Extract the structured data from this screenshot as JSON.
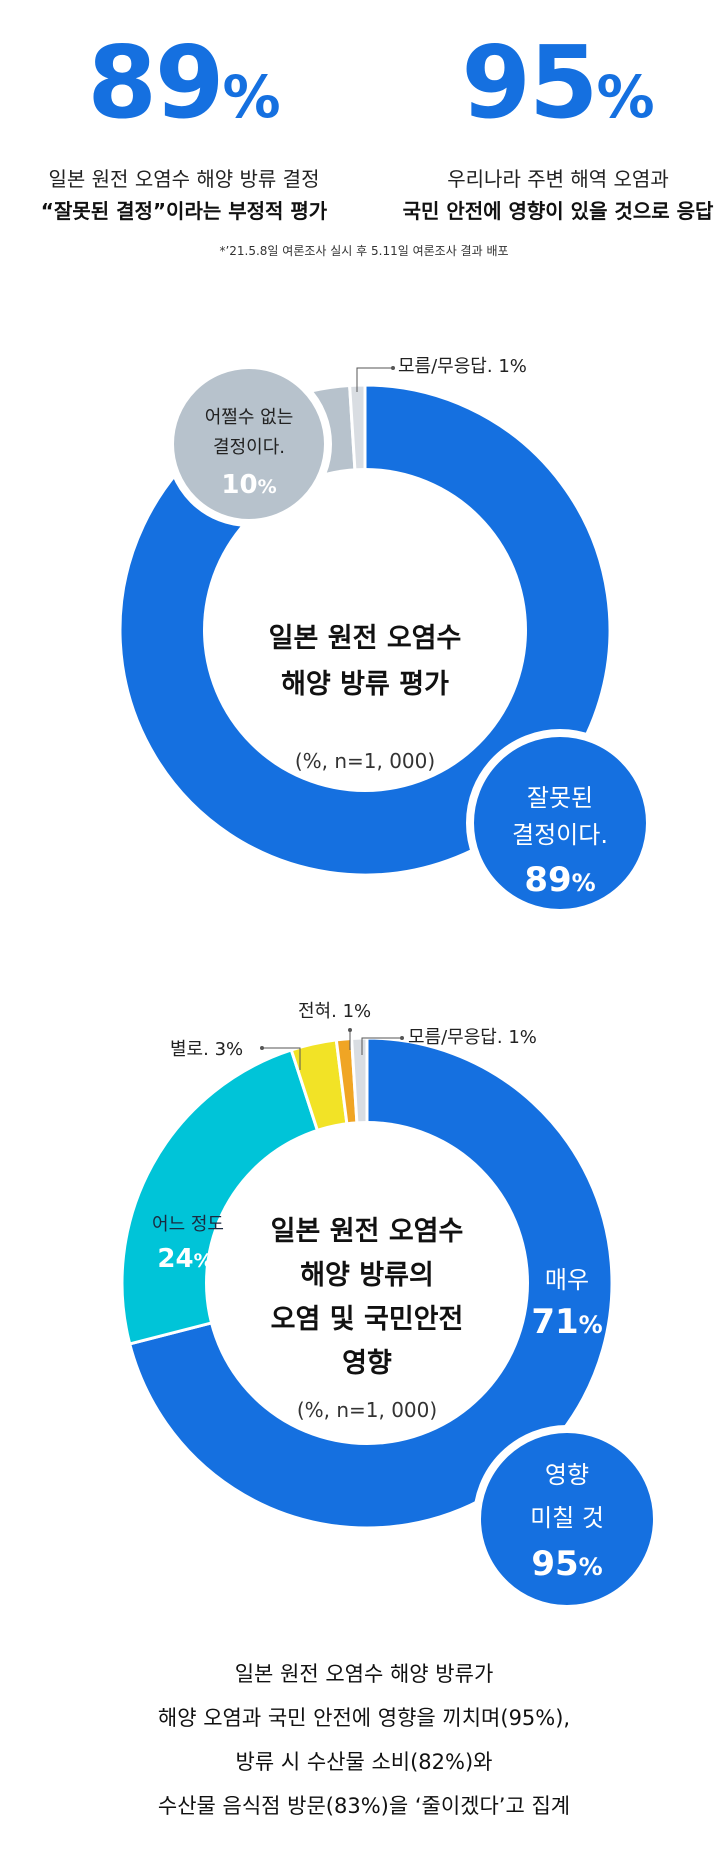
{
  "stats": [
    {
      "value": "89",
      "unit": "%",
      "line1": "일본 원전 오염수 해양 방류 결정",
      "line2": "“잘못된 결정”이라는 부정적 평가"
    },
    {
      "value": "95",
      "unit": "%",
      "line1": "우리나라 주변 해역 오염과",
      "line2": "국민 안전에 영향이 있을 것으로 응답"
    }
  ],
  "note": "*’21.5.8일 여론조사 실시 후 5.11일 여론조사 결과 배포",
  "chart_data": [
    {
      "type": "pie",
      "title_lines": [
        "일본 원전 오염수",
        "해양 방류 평가"
      ],
      "subtitle": "(%, n=1, 000)",
      "slices": [
        {
          "label": "잘못된 결정이다.",
          "value": 89,
          "color": "#1570e0",
          "label_lines": [
            "잘못된",
            "결정이다."
          ],
          "value_text": "89"
        },
        {
          "label": "어쩔수 없는 결정이다.",
          "value": 10,
          "color": "#b7c2cc",
          "label_lines": [
            "어쩔수 없는",
            "결정이다."
          ],
          "value_text": "10"
        },
        {
          "label": "모름/무응답.",
          "value": 1,
          "color": "#d9dde2",
          "value_text": "1%"
        }
      ]
    },
    {
      "type": "pie",
      "title_lines": [
        "일본 원전 오염수",
        "해양 방류의",
        "오염 및 국민안전",
        "영향"
      ],
      "subtitle": "(%, n=1, 000)",
      "slices": [
        {
          "label": "매우",
          "value": 71,
          "color": "#1570e0",
          "value_text": "71"
        },
        {
          "label": "어느 정도",
          "value": 24,
          "color": "#00c4d8",
          "value_text": "24"
        },
        {
          "label": "별로.",
          "value": 3,
          "color": "#f2e326",
          "value_text": "3%"
        },
        {
          "label": "전혀.",
          "value": 1,
          "color": "#f0a524",
          "value_text": "1%"
        },
        {
          "label": "모름/무응답.",
          "value": 1,
          "color": "#d9dde2",
          "value_text": "1%"
        }
      ],
      "callout": {
        "lines": [
          "영향",
          "미칠 것"
        ],
        "value_text": "95"
      }
    }
  ],
  "bottom_text": [
    "일본 원전 오염수 해양 방류가",
    "해양 오염과 국민 안전에 영향을 끼치며(95%),",
    "방류 시 수산물 소비(82%)와",
    "수산물 음식점 방문(83%)을 ‘줄이겠다’고 집계"
  ]
}
